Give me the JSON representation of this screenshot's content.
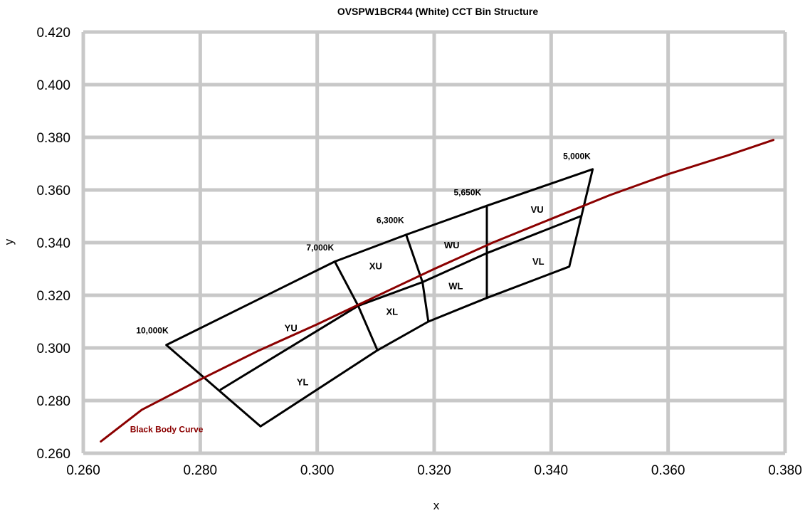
{
  "chart_data": {
    "type": "line",
    "title": "OVSPW1BCR44 (White) CCT Bin Structure",
    "xlabel": "x",
    "ylabel": "y",
    "xlim": [
      0.26,
      0.38
    ],
    "ylim": [
      0.26,
      0.42
    ],
    "x_ticks": [
      "0.260",
      "0.280",
      "0.300",
      "0.320",
      "0.340",
      "0.360",
      "0.380"
    ],
    "y_ticks": [
      "0.260",
      "0.280",
      "0.300",
      "0.320",
      "0.340",
      "0.360",
      "0.380",
      "0.400",
      "0.420"
    ],
    "grid": true,
    "colors": {
      "curve": "#8b0000",
      "bins": "#000000",
      "grid": "#c8c8c8"
    },
    "curve": {
      "name": "Black Body Curve",
      "points": [
        [
          0.263,
          0.2645
        ],
        [
          0.27,
          0.2765
        ],
        [
          0.28,
          0.288
        ],
        [
          0.29,
          0.299
        ],
        [
          0.3,
          0.309
        ],
        [
          0.31,
          0.3195
        ],
        [
          0.32,
          0.33
        ],
        [
          0.33,
          0.34
        ],
        [
          0.34,
          0.349
        ],
        [
          0.35,
          0.358
        ],
        [
          0.36,
          0.366
        ],
        [
          0.37,
          0.373
        ],
        [
          0.378,
          0.379
        ]
      ]
    },
    "bin_lines": [
      [
        [
          0.2742,
          0.3011
        ],
        [
          0.2903,
          0.2702
        ],
        [
          0.3103,
          0.2991
        ],
        [
          0.319,
          0.31
        ],
        [
          0.329,
          0.319
        ],
        [
          0.3431,
          0.3309
        ],
        [
          0.3471,
          0.3679
        ],
        [
          0.329,
          0.354
        ],
        [
          0.3152,
          0.343
        ],
        [
          0.303,
          0.3328
        ],
        [
          0.2742,
          0.3011
        ]
      ],
      [
        [
          0.2835,
          0.2842
        ],
        [
          0.307,
          0.316
        ],
        [
          0.318,
          0.325
        ],
        [
          0.329,
          0.336
        ],
        [
          0.345,
          0.35
        ]
      ],
      [
        [
          0.303,
          0.3328
        ],
        [
          0.307,
          0.316
        ],
        [
          0.3103,
          0.2991
        ]
      ],
      [
        [
          0.3152,
          0.343
        ],
        [
          0.318,
          0.325
        ],
        [
          0.319,
          0.31
        ]
      ],
      [
        [
          0.329,
          0.354
        ],
        [
          0.329,
          0.319
        ]
      ]
    ],
    "bin_labels": [
      {
        "text": "YU",
        "x": 0.2955,
        "y": 0.3063
      },
      {
        "text": "YL",
        "x": 0.2975,
        "y": 0.2858
      },
      {
        "text": "XU",
        "x": 0.31,
        "y": 0.3298
      },
      {
        "text": "XL",
        "x": 0.3128,
        "y": 0.3126
      },
      {
        "text": "WU",
        "x": 0.323,
        "y": 0.3378
      },
      {
        "text": "WL",
        "x": 0.3237,
        "y": 0.3223
      },
      {
        "text": "VU",
        "x": 0.3376,
        "y": 0.3514
      },
      {
        "text": "VL",
        "x": 0.3378,
        "y": 0.3316
      }
    ],
    "cct_labels": [
      {
        "text": "10,000K",
        "x": 0.2718,
        "y": 0.3055
      },
      {
        "text": "7,000K",
        "x": 0.3005,
        "y": 0.337
      },
      {
        "text": "6,300K",
        "x": 0.3125,
        "y": 0.3475
      },
      {
        "text": "5,650K",
        "x": 0.3257,
        "y": 0.358
      },
      {
        "text": "5,000K",
        "x": 0.3444,
        "y": 0.3718
      }
    ],
    "curve_label": {
      "text": "Black Body Curve",
      "x": 0.268,
      "y": 0.268
    }
  }
}
